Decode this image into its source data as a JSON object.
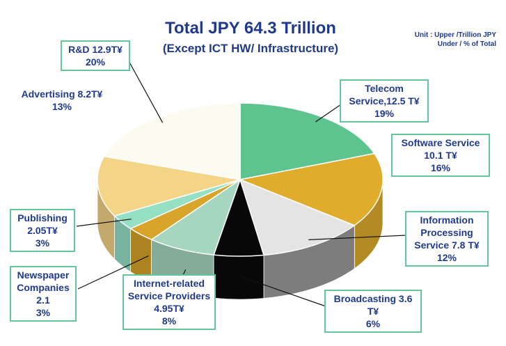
{
  "title": "Total JPY 64.3 Trillion",
  "subtitle": "(Except ICT HW/ Infrastructure)",
  "unit_line1": "Unit : Upper /Trillion JPY",
  "unit_line2": "Under / % of Total",
  "colors": {
    "telecom": "#5ec48f",
    "software": "#e0ac2c",
    "info": "#e4e4e4",
    "broadcast": "#080808",
    "internet": "#a6d6bf",
    "newspaper": "#d8a42a",
    "publishing": "#95e0c5",
    "advertising": "#f4d487",
    "rnd": "#fbfbf2",
    "label_border": "#62c79b",
    "text": "#1f3a8a"
  },
  "labels": {
    "telecom": {
      "line1": "Telecom",
      "line2": "Service,12.5 T¥",
      "line3": "19%"
    },
    "software": {
      "line1": "Software Service",
      "line2": "10.1 T¥",
      "line3": "16%"
    },
    "info": {
      "line1": "Information",
      "line2": "Processing",
      "line3": "Service 7.8 T¥",
      "line4": "12%"
    },
    "broadcast": {
      "line1": "Broadcasting 3.6",
      "line2": "T¥",
      "line3": "6%"
    },
    "internet": {
      "line1": "Internet-related",
      "line2": "Service Providers",
      "line3": "4.95T¥",
      "line4": "8%"
    },
    "newspaper": {
      "line1": "Newspaper",
      "line2": "Companies",
      "line3": "2.1",
      "line4": "3%"
    },
    "publishing": {
      "line1": "Publishing",
      "line2": "2.05T¥",
      "line3": "3%"
    },
    "advertising": {
      "line1": "Advertising 8.2T¥",
      "line2": "13%"
    },
    "rnd": {
      "line1": "R&D 12.9T¥",
      "line2": "20%"
    }
  },
  "chart_data": {
    "type": "pie",
    "title": "Total JPY 64.3 Trillion",
    "subtitle": "(Except ICT HW/ Infrastructure)",
    "three_d": true,
    "slices": [
      {
        "key": "telecom",
        "value": 12.5,
        "percent": 19
      },
      {
        "key": "software",
        "value": 10.1,
        "percent": 16
      },
      {
        "key": "info",
        "value": 7.8,
        "percent": 12
      },
      {
        "key": "broadcast",
        "value": 3.6,
        "percent": 6
      },
      {
        "key": "internet",
        "value": 4.95,
        "percent": 8
      },
      {
        "key": "newspaper",
        "value": 2.1,
        "percent": 3
      },
      {
        "key": "publishing",
        "value": 2.05,
        "percent": 3
      },
      {
        "key": "advertising",
        "value": 8.2,
        "percent": 13
      },
      {
        "key": "rnd",
        "value": 12.9,
        "percent": 20
      }
    ]
  }
}
